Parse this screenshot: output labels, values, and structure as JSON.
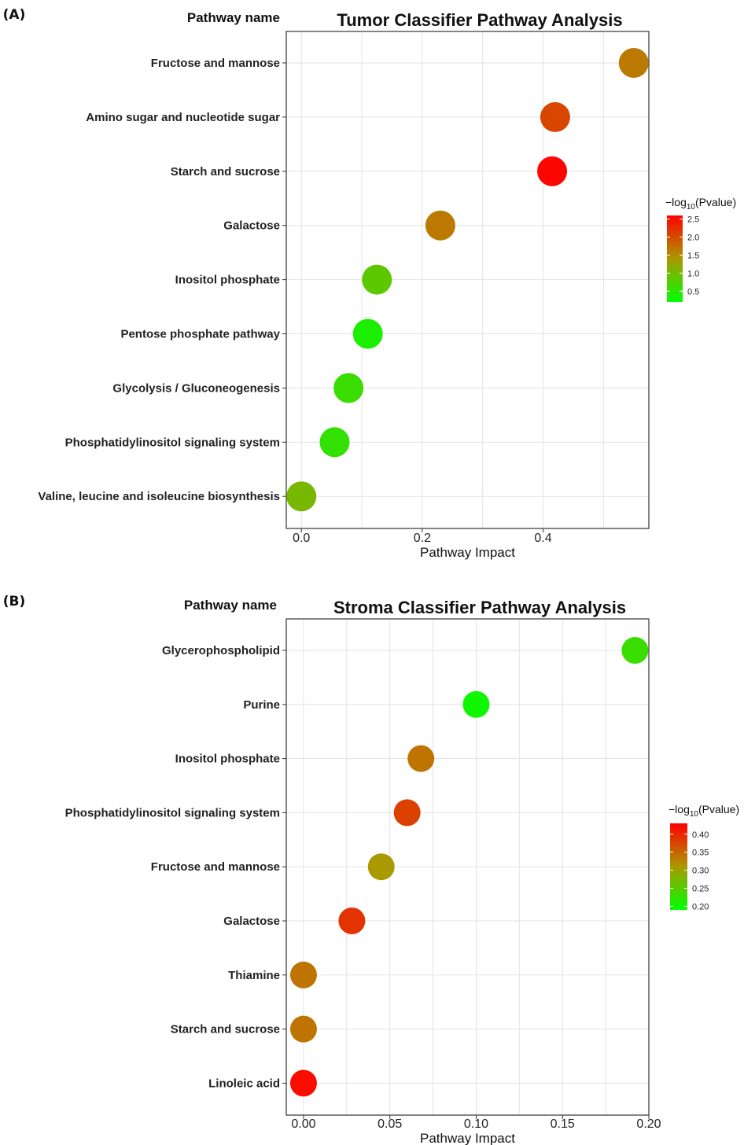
{
  "chart_data": [
    {
      "type": "scatter",
      "panel_label": "(A)",
      "title": "Tumor Classifier Pathway Analysis",
      "ylabel": "Pathway name",
      "xlabel": "Pathway Impact",
      "xlim": [
        -0.025,
        0.575
      ],
      "xticks": [
        0.0,
        0.2,
        0.4
      ],
      "xtick_labels": [
        "0.0",
        "0.2",
        "0.4"
      ],
      "grid": true,
      "legend": {
        "title_prefix": "−log",
        "title_sub": "10",
        "title_suffix": "(Pvalue)",
        "range": [
          0.2,
          2.6
        ],
        "ticks": [
          0.5,
          1.0,
          1.5,
          2.0,
          2.5
        ],
        "tick_labels": [
          "0.5",
          "1.0",
          "1.5",
          "2.0",
          "2.5"
        ],
        "placement": "right"
      },
      "points": [
        {
          "pathway": "Fructose and mannose",
          "impact": 0.55,
          "neglog10p": 1.65
        },
        {
          "pathway": "Amino sugar and nucleotide sugar",
          "impact": 0.42,
          "neglog10p": 2.05
        },
        {
          "pathway": "Starch and sucrose",
          "impact": 0.415,
          "neglog10p": 2.55
        },
        {
          "pathway": "Galactose",
          "impact": 0.23,
          "neglog10p": 1.65
        },
        {
          "pathway": "Inositol phosphate",
          "impact": 0.125,
          "neglog10p": 0.85
        },
        {
          "pathway": "Pentose phosphate pathway",
          "impact": 0.11,
          "neglog10p": 0.4
        },
        {
          "pathway": "Glycolysis / Gluconeogenesis",
          "impact": 0.078,
          "neglog10p": 0.6
        },
        {
          "pathway": "Phosphatidylinositol signaling system",
          "impact": 0.055,
          "neglog10p": 0.55
        },
        {
          "pathway": "Valine, leucine and isoleucine biosynthesis",
          "impact": 0.0,
          "neglog10p": 1.05
        }
      ]
    },
    {
      "type": "scatter",
      "panel_label": "(B)",
      "title": "Stroma Classifier Pathway Analysis",
      "ylabel": "Pathway name",
      "xlabel": "Pathway Impact",
      "xlim": [
        -0.01,
        0.2
      ],
      "xticks": [
        0.0,
        0.05,
        0.1,
        0.15,
        0.2
      ],
      "xtick_labels": [
        "0.00",
        "0.05",
        "0.10",
        "0.15",
        "0.20"
      ],
      "grid": true,
      "legend": {
        "title_prefix": "−log",
        "title_sub": "10",
        "title_suffix": "(Pvalue)",
        "range": [
          0.19,
          0.43
        ],
        "ticks": [
          0.2,
          0.25,
          0.3,
          0.35,
          0.4
        ],
        "tick_labels": [
          "0.20",
          "0.25",
          "0.30",
          "0.35",
          "0.40"
        ],
        "placement": "right"
      },
      "points": [
        {
          "pathway": "Glycerophospholipid",
          "impact": 0.192,
          "neglog10p": 0.23
        },
        {
          "pathway": "Purine",
          "impact": 0.1,
          "neglog10p": 0.2
        },
        {
          "pathway": "Inositol phosphate",
          "impact": 0.068,
          "neglog10p": 0.34
        },
        {
          "pathway": "Phosphatidylinositol signaling system",
          "impact": 0.06,
          "neglog10p": 0.38
        },
        {
          "pathway": "Fructose and mannose",
          "impact": 0.045,
          "neglog10p": 0.31
        },
        {
          "pathway": "Galactose",
          "impact": 0.028,
          "neglog10p": 0.39
        },
        {
          "pathway": "Thiamine",
          "impact": 0.0,
          "neglog10p": 0.34
        },
        {
          "pathway": "Starch and sucrose",
          "impact": 0.0,
          "neglog10p": 0.34
        },
        {
          "pathway": "Linoleic acid",
          "impact": 0.0,
          "neglog10p": 0.42
        }
      ]
    }
  ],
  "colors": {
    "low": "#00ff00",
    "mid": "#aa9900",
    "high": "#ff0000",
    "grid": "#e3e3e3",
    "panel_border": "#333333"
  }
}
